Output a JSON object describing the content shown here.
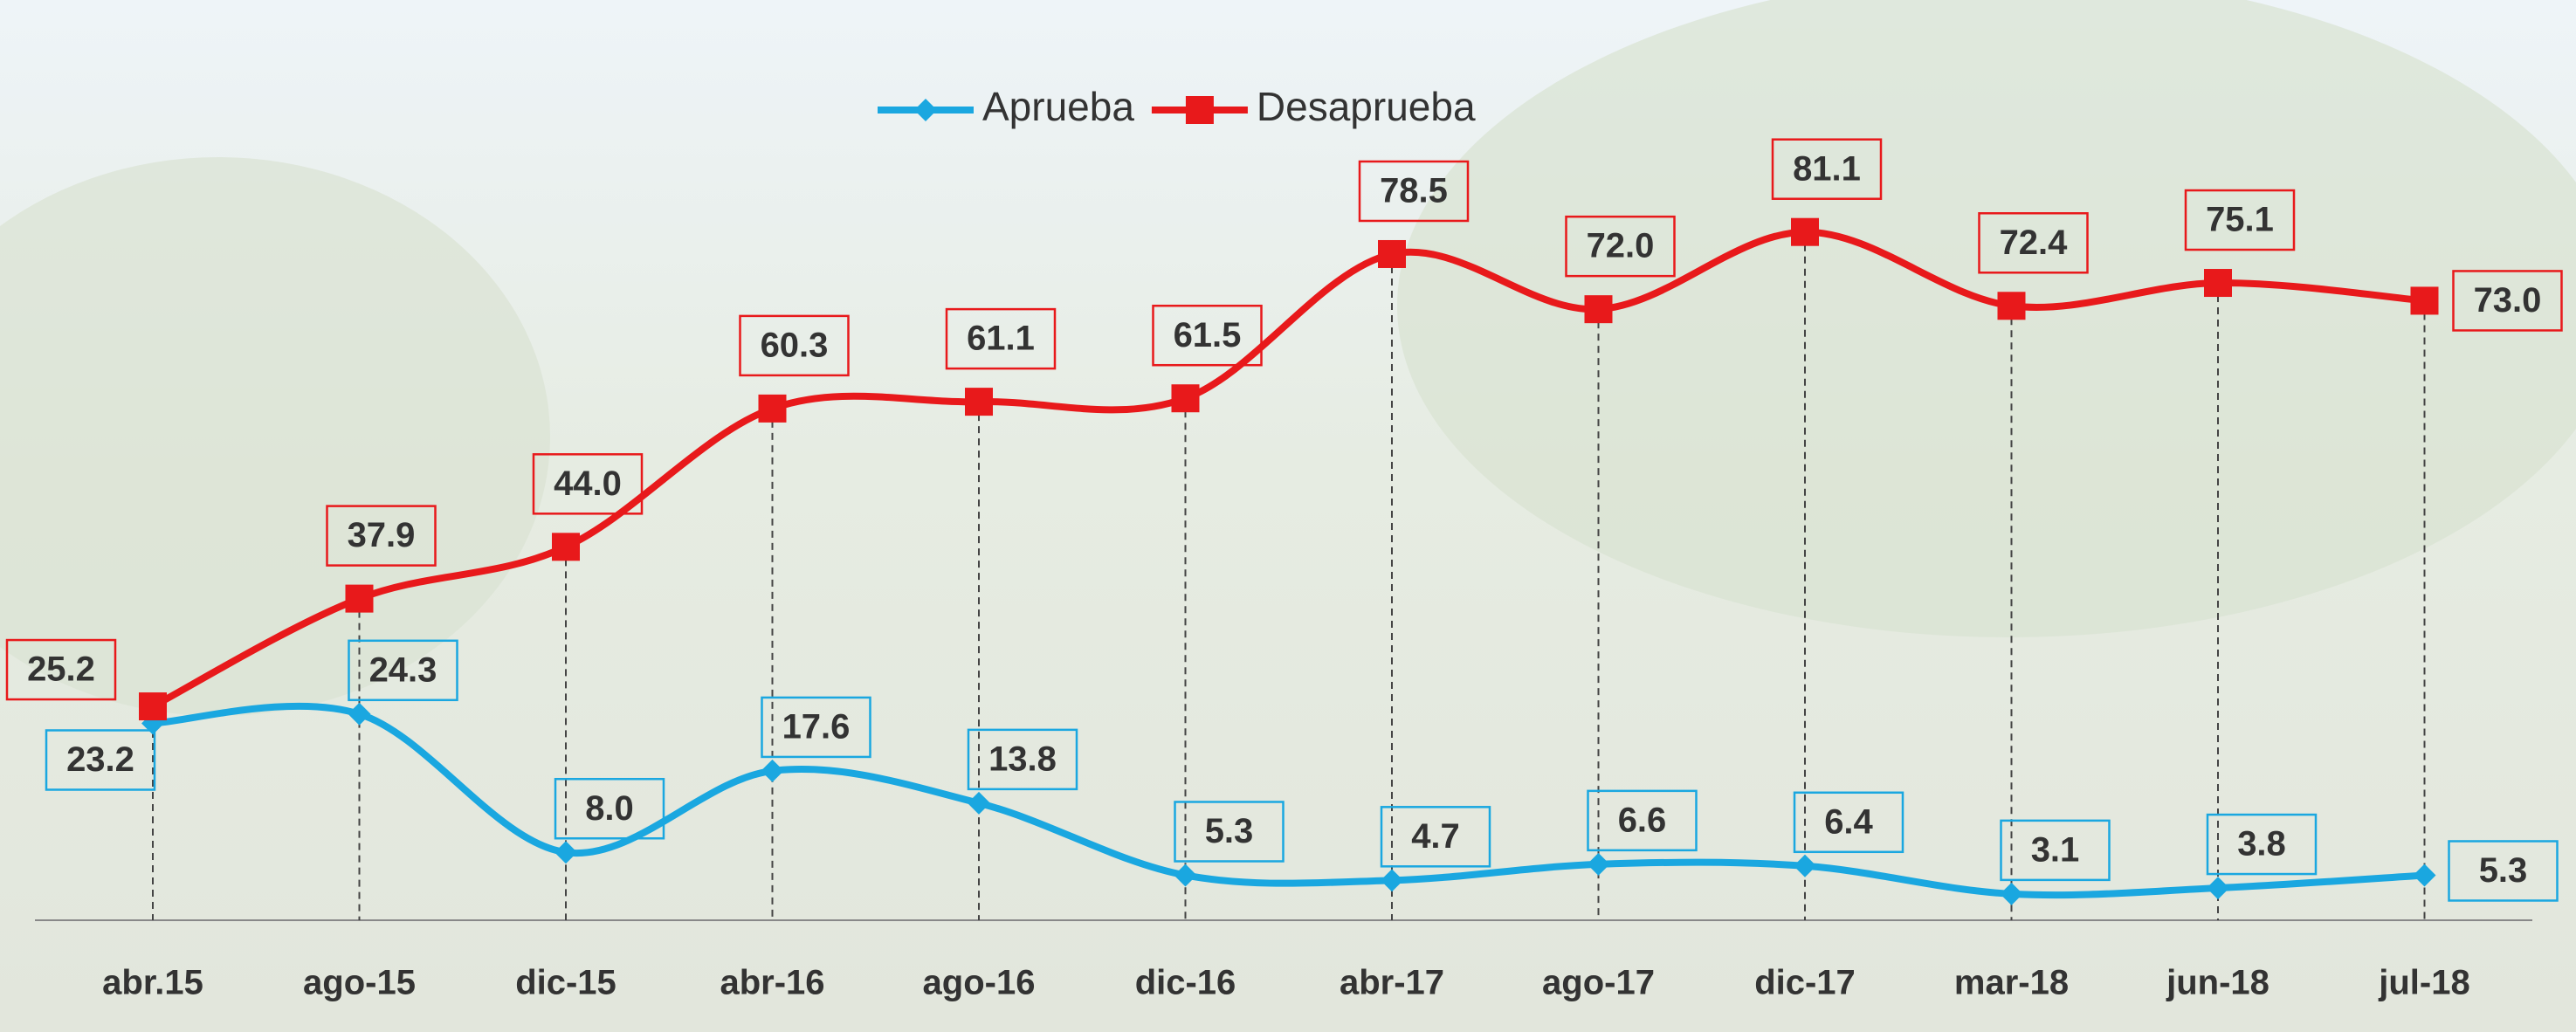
{
  "chart_data": {
    "type": "line",
    "categories": [
      "abr.15",
      "ago-15",
      "dic-15",
      "abr-16",
      "ago-16",
      "dic-16",
      "abr-17",
      "ago-17",
      "dic-17",
      "mar-18",
      "jun-18",
      "jul-18"
    ],
    "series": [
      {
        "name": "Aprueba",
        "color": "#1aa7e0",
        "values": [
          23.2,
          24.3,
          8.0,
          17.6,
          13.8,
          5.3,
          4.7,
          6.6,
          6.4,
          3.1,
          3.8,
          5.3
        ],
        "value_labels": [
          "23.2",
          "24.3",
          "8.0",
          "17.6",
          "13.8",
          "5.3",
          "4.7",
          "6.6",
          "6.4",
          "3.1",
          "3.8",
          "5.3"
        ]
      },
      {
        "name": "Desaprueba",
        "color": "#e8191b",
        "values": [
          25.2,
          37.9,
          44.0,
          60.3,
          61.1,
          61.5,
          78.5,
          72.0,
          81.1,
          72.4,
          75.1,
          73.0
        ],
        "value_labels": [
          "25.2",
          "37.9",
          "44.0",
          "60.3",
          "61.1",
          "61.5",
          "78.5",
          "72.0",
          "81.1",
          "72.4",
          "75.1",
          "73.0"
        ]
      }
    ]
  }
}
